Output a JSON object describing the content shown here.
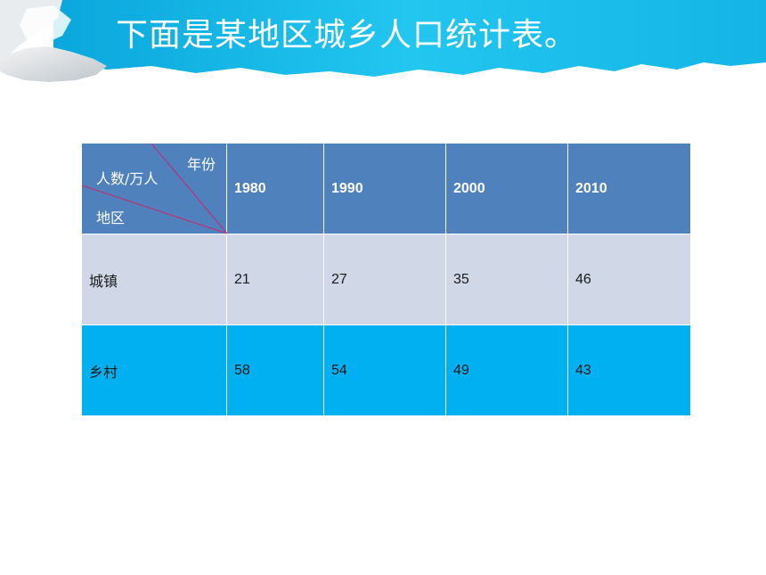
{
  "title": "下面是某地区城乡人口统计表。",
  "colors": {
    "banner": "#1ec3ee",
    "header_bg": "#4f81bd",
    "row1_bg": "#d0d8e8",
    "row2_bg": "#00b0f0",
    "diagonal": "#c0307a"
  },
  "table": {
    "corner": {
      "year_label": "年份",
      "population_label": "人数/万人",
      "region_label": "地区"
    },
    "years": [
      "1980",
      "1990",
      "2000",
      "2010"
    ],
    "rows": [
      {
        "region": "城镇",
        "values": [
          "21",
          "27",
          "35",
          "46"
        ]
      },
      {
        "region": "乡村",
        "values": [
          "58",
          "54",
          "49",
          "43"
        ]
      }
    ]
  }
}
